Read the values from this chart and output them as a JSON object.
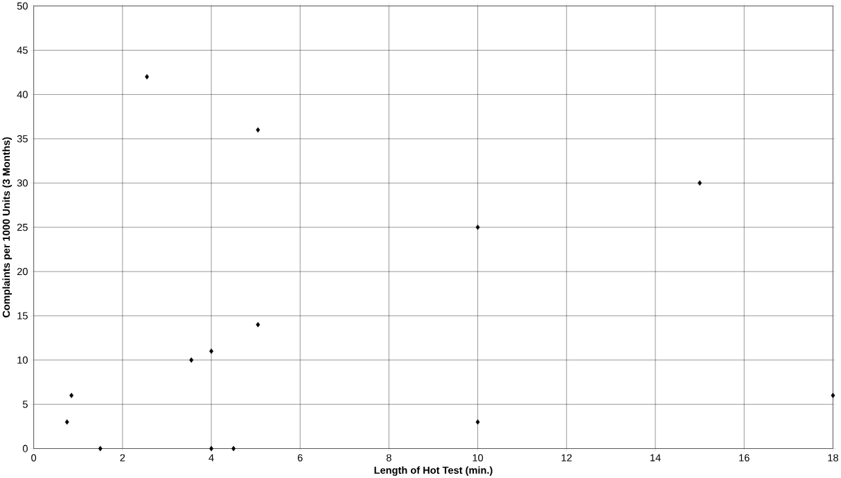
{
  "chart_data": {
    "type": "scatter",
    "xlabel": "Length of Hot Test (min.)",
    "ylabel": "Complaints per 1000 Units (3 Months)",
    "x": [
      0.75,
      0.85,
      1.5,
      2.55,
      3.55,
      4,
      4,
      4.5,
      5.05,
      5.05,
      10,
      10,
      15,
      18
    ],
    "values": [
      3,
      6,
      0,
      42,
      10,
      11,
      0,
      0,
      36,
      14,
      25,
      3,
      30,
      6
    ],
    "color": "#000000",
    "marker": "diamond",
    "xlim": [
      0,
      18
    ],
    "ylim": [
      0,
      50
    ],
    "xticks": [
      0,
      2,
      4,
      6,
      8,
      10,
      12,
      14,
      16,
      18
    ],
    "yticks": [
      0,
      5,
      10,
      15,
      20,
      25,
      30,
      35,
      40,
      45,
      50
    ],
    "grid": true
  }
}
